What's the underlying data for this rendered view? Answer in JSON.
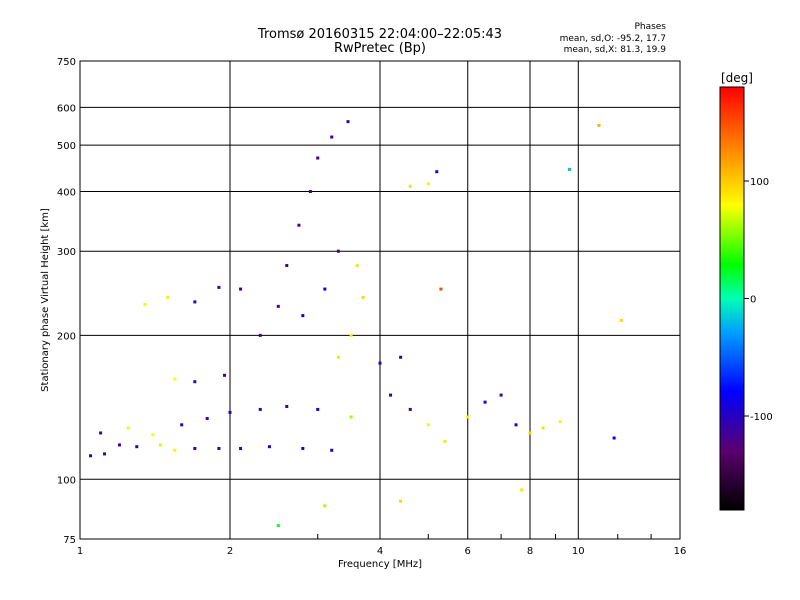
{
  "header": {
    "title_line1": "Tromsø 20160315 22:04:00–22:05:43",
    "title_line2": "RwPretec (Bp)",
    "stats_title": "Phases",
    "stats_line1": "mean, sd,O: -95.2, 17.7",
    "stats_line2": "mean, sd,X:  81.3, 19.9"
  },
  "colorbar": {
    "label": "[deg]",
    "ticks": [
      {
        "label": "100",
        "value": 100
      },
      {
        "label": "0",
        "value": 0
      },
      {
        "label": "-100",
        "value": -100
      }
    ],
    "range": [
      -180,
      180
    ]
  },
  "chart_data": {
    "type": "scatter",
    "title": "Tromsø 20160315 22:04:00–22:05:43",
    "subtitle": "RwPretec (Bp)",
    "xlabel": "Frequency [MHz]",
    "ylabel": "Stationary phase Virtual Height [km]",
    "xscale": "log",
    "yscale": "log",
    "xlim": [
      1,
      16
    ],
    "ylim": [
      75,
      750
    ],
    "xticks": [
      1,
      2,
      4,
      6,
      8,
      10,
      16
    ],
    "xticklabels": [
      "1",
      "2",
      "4",
      "6",
      "8",
      "10",
      "16"
    ],
    "yticks": [
      75,
      100,
      200,
      300,
      400,
      500,
      600,
      750
    ],
    "yticklabels": [
      "75",
      "100",
      "200",
      "300",
      "400",
      "500",
      "600",
      "750"
    ],
    "grid": true,
    "color_quantity": "phase [deg]",
    "series": [
      {
        "values": [
          {
            "x": 1.05,
            "y": 112,
            "phase": -110
          },
          {
            "x": 1.12,
            "y": 113,
            "phase": -115
          },
          {
            "x": 1.2,
            "y": 118,
            "phase": -105
          },
          {
            "x": 1.3,
            "y": 117,
            "phase": -100
          },
          {
            "x": 1.45,
            "y": 118,
            "phase": 70
          },
          {
            "x": 1.55,
            "y": 115,
            "phase": 85
          },
          {
            "x": 1.7,
            "y": 116,
            "phase": -110
          },
          {
            "x": 1.9,
            "y": 116,
            "phase": -105
          },
          {
            "x": 2.1,
            "y": 116,
            "phase": -110
          },
          {
            "x": 2.4,
            "y": 117,
            "phase": -100
          },
          {
            "x": 2.8,
            "y": 116,
            "phase": -105
          },
          {
            "x": 3.2,
            "y": 115,
            "phase": -95
          },
          {
            "x": 1.1,
            "y": 125,
            "phase": -110
          },
          {
            "x": 1.25,
            "y": 128,
            "phase": 75
          },
          {
            "x": 1.4,
            "y": 124,
            "phase": 80
          },
          {
            "x": 1.6,
            "y": 130,
            "phase": -100
          },
          {
            "x": 1.8,
            "y": 134,
            "phase": -110
          },
          {
            "x": 2.0,
            "y": 138,
            "phase": -105
          },
          {
            "x": 2.3,
            "y": 140,
            "phase": -100
          },
          {
            "x": 2.6,
            "y": 142,
            "phase": -110
          },
          {
            "x": 3.0,
            "y": 140,
            "phase": -95
          },
          {
            "x": 3.5,
            "y": 135,
            "phase": 60
          },
          {
            "x": 1.35,
            "y": 232,
            "phase": 75
          },
          {
            "x": 1.5,
            "y": 240,
            "phase": 85
          },
          {
            "x": 1.7,
            "y": 235,
            "phase": -100
          },
          {
            "x": 1.9,
            "y": 252,
            "phase": -115
          },
          {
            "x": 2.1,
            "y": 250,
            "phase": -110
          },
          {
            "x": 1.55,
            "y": 162,
            "phase": 80
          },
          {
            "x": 1.7,
            "y": 160,
            "phase": -105
          },
          {
            "x": 1.95,
            "y": 165,
            "phase": -110
          },
          {
            "x": 2.3,
            "y": 200,
            "phase": -115
          },
          {
            "x": 2.5,
            "y": 230,
            "phase": -120
          },
          {
            "x": 2.6,
            "y": 280,
            "phase": -110
          },
          {
            "x": 2.75,
            "y": 340,
            "phase": -120
          },
          {
            "x": 2.9,
            "y": 400,
            "phase": -115
          },
          {
            "x": 3.0,
            "y": 470,
            "phase": -110
          },
          {
            "x": 3.2,
            "y": 520,
            "phase": -105
          },
          {
            "x": 3.45,
            "y": 560,
            "phase": -110
          },
          {
            "x": 2.8,
            "y": 220,
            "phase": -80
          },
          {
            "x": 3.1,
            "y": 250,
            "phase": -90
          },
          {
            "x": 3.3,
            "y": 300,
            "phase": -120
          },
          {
            "x": 3.6,
            "y": 280,
            "phase": 90
          },
          {
            "x": 3.7,
            "y": 240,
            "phase": 95
          },
          {
            "x": 3.5,
            "y": 200,
            "phase": 85
          },
          {
            "x": 3.3,
            "y": 180,
            "phase": 70
          },
          {
            "x": 4.0,
            "y": 175,
            "phase": -110
          },
          {
            "x": 4.4,
            "y": 180,
            "phase": -100
          },
          {
            "x": 4.2,
            "y": 150,
            "phase": -105
          },
          {
            "x": 4.6,
            "y": 140,
            "phase": -110
          },
          {
            "x": 5.0,
            "y": 130,
            "phase": 75
          },
          {
            "x": 5.4,
            "y": 120,
            "phase": 90
          },
          {
            "x": 6.0,
            "y": 135,
            "phase": 85
          },
          {
            "x": 6.5,
            "y": 145,
            "phase": -105
          },
          {
            "x": 7.0,
            "y": 150,
            "phase": -110
          },
          {
            "x": 7.5,
            "y": 130,
            "phase": -100
          },
          {
            "x": 8.0,
            "y": 125,
            "phase": 95
          },
          {
            "x": 8.5,
            "y": 128,
            "phase": 90
          },
          {
            "x": 9.2,
            "y": 132,
            "phase": 85
          },
          {
            "x": 4.6,
            "y": 410,
            "phase": 90
          },
          {
            "x": 5.0,
            "y": 415,
            "phase": 85
          },
          {
            "x": 5.2,
            "y": 440,
            "phase": -100
          },
          {
            "x": 5.3,
            "y": 250,
            "phase": 150
          },
          {
            "x": 9.6,
            "y": 445,
            "phase": -20
          },
          {
            "x": 11.0,
            "y": 550,
            "phase": 110
          },
          {
            "x": 12.2,
            "y": 215,
            "phase": 95
          },
          {
            "x": 11.8,
            "y": 122,
            "phase": -80
          },
          {
            "x": 7.7,
            "y": 95,
            "phase": 90
          },
          {
            "x": 4.4,
            "y": 90,
            "phase": 95
          },
          {
            "x": 2.5,
            "y": 80,
            "phase": 20
          },
          {
            "x": 3.1,
            "y": 88,
            "phase": 60
          }
        ]
      }
    ]
  }
}
